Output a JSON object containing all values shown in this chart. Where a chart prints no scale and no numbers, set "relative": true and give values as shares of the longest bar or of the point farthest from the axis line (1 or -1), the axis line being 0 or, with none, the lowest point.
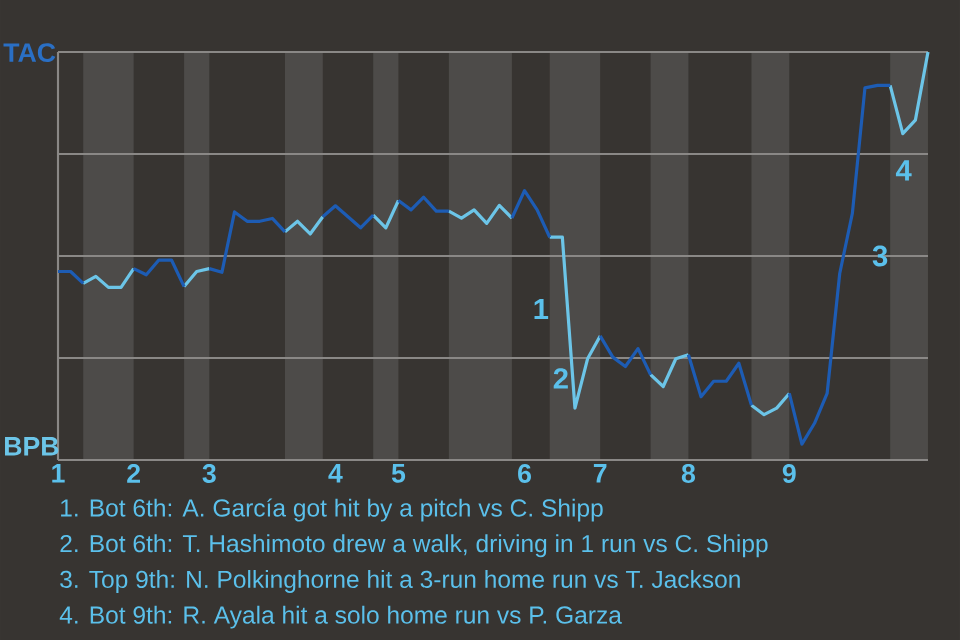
{
  "chart_data": {
    "type": "line",
    "relative": true,
    "categories": [
      "1",
      null,
      null,
      null,
      null,
      null,
      "2",
      null,
      null,
      null,
      null,
      null,
      "3",
      null,
      null,
      null,
      null,
      null,
      null,
      null,
      null,
      null,
      "4",
      null,
      null,
      null,
      null,
      "5",
      null,
      null,
      null,
      null,
      null,
      null,
      null,
      null,
      null,
      "6",
      null,
      null,
      null,
      null,
      null,
      "7",
      null,
      null,
      null,
      null,
      null,
      null,
      "8",
      null,
      null,
      null,
      null,
      null,
      null,
      null,
      "9",
      null,
      null,
      null,
      null,
      null,
      null,
      null,
      null,
      null,
      null,
      null
    ],
    "series": [
      {
        "color": "#1d5cb4",
        "values": [
          0.462,
          0.462,
          0.433,
          null,
          null,
          null,
          0.469,
          0.454,
          0.49,
          0.49,
          0.425,
          null,
          0.469,
          0.46,
          0.608,
          0.585,
          0.585,
          0.592,
          0.559,
          null,
          null,
          0.596,
          0.623,
          0.596,
          0.569,
          0.6,
          null,
          0.636,
          0.613,
          0.644,
          0.61,
          0.61,
          null,
          null,
          null,
          null,
          0.593,
          0.66,
          0.613,
          0.546,
          null,
          null,
          null,
          0.304,
          0.252,
          0.229,
          0.273,
          0.209,
          null,
          null,
          0.258,
          0.155,
          0.193,
          0.193,
          0.237,
          0.134,
          null,
          null,
          0.163,
          0.039,
          0.09,
          0.163,
          0.457,
          0.604,
          0.912,
          0.918,
          0.918,
          null,
          null,
          null
        ]
      },
      {
        "color": "#6cc5e8",
        "values": [
          null,
          null,
          0.433,
          0.45,
          0.423,
          0.423,
          0.469,
          null,
          null,
          null,
          0.425,
          0.462,
          0.469,
          null,
          null,
          null,
          null,
          null,
          0.559,
          0.585,
          0.554,
          0.596,
          null,
          null,
          null,
          0.6,
          0.569,
          0.636,
          null,
          null,
          null,
          0.61,
          0.593,
          0.613,
          0.58,
          0.624,
          0.593,
          null,
          null,
          0.546,
          0.546,
          0.127,
          0.248,
          0.304,
          null,
          null,
          null,
          0.209,
          0.18,
          0.248,
          0.258,
          null,
          null,
          null,
          null,
          0.134,
          0.111,
          0.127,
          0.163,
          null,
          null,
          null,
          null,
          null,
          null,
          null,
          0.918,
          0.8,
          0.833,
          1
        ]
      }
    ],
    "grid": "y",
    "annotations": [
      "TAC",
      "BPB",
      "1",
      "2",
      "3",
      "4",
      "1. Bot 6th: A. García got hit by a pitch vs C. Shipp",
      "2. Bot 6th: T. Hashimoto drew a walk, driving in 1 run vs C. Shipp",
      "3. Top 9th: N. Polkinghorne hit a 3-run home run vs T. Jackson",
      "4. Bot 9th: R. Ayala hit a solo home run vs P. Garza"
    ]
  }
}
